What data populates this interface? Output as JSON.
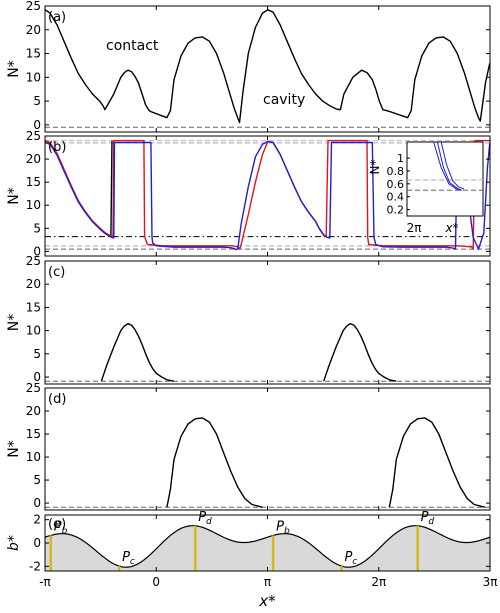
{
  "colors": {
    "black": "#000000",
    "red": "#e0141e",
    "blue": "#1f1fd6",
    "dash_gray": "#666666",
    "pale_red": "#e8a0a0",
    "pale_blue": "#a0a0e8",
    "bed_fill": "#d9d9d9",
    "marker": "#d4b81c"
  },
  "chart_data": [
    {
      "type": "line",
      "panel": "(a)",
      "ylabel": "N*",
      "ylim": [
        -1.5,
        25
      ],
      "yticks": [
        "0",
        "5",
        "10",
        "15",
        "20",
        "25"
      ],
      "xlim": [
        -3.1416,
        9.4248
      ],
      "annotations": [
        "contact",
        "cavity"
      ],
      "reference_line": {
        "y": -0.5,
        "style": "dashed"
      },
      "series": [
        {
          "color": "black",
          "x": [
            -3.14,
            -3.0,
            -2.8,
            -2.6,
            -2.4,
            -2.2,
            -2.0,
            -1.8,
            -1.6,
            -1.5,
            -1.45,
            -1.2,
            -1.0,
            -0.9,
            -0.8,
            -0.7,
            -0.6,
            -0.5,
            -0.4,
            -0.3,
            -0.2,
            -0.15,
            0.3,
            0.4,
            0.5,
            0.7,
            0.9,
            1.1,
            1.3,
            1.5,
            1.7,
            1.9,
            2.1,
            2.2,
            2.3,
            2.35,
            2.45,
            2.6,
            2.8,
            3.0,
            3.15,
            3.3,
            3.5,
            3.7,
            3.9,
            4.1,
            4.3,
            4.5,
            4.7,
            4.9,
            5.1,
            5.2,
            5.3,
            5.55,
            5.8,
            5.95,
            6.1,
            6.2,
            6.3,
            6.4,
            6.55,
            6.6,
            7.1,
            7.2,
            7.3,
            7.5,
            7.7,
            7.9,
            8.1,
            8.3,
            8.5,
            8.7,
            8.9,
            9.0,
            9.1,
            9.15,
            9.3,
            9.42
          ],
          "y": [
            24.2,
            23.5,
            21.0,
            17.5,
            14.0,
            10.8,
            8.5,
            6.5,
            5.0,
            4.0,
            3.2,
            6.5,
            10.0,
            11.0,
            11.5,
            11.2,
            10.2,
            8.8,
            6.5,
            4.2,
            3.0,
            2.8,
            1.5,
            3.0,
            9.5,
            14.5,
            17.2,
            18.3,
            18.5,
            17.6,
            15.0,
            11.0,
            6.0,
            3.5,
            1.5,
            0.5,
            7.0,
            15.0,
            20.5,
            23.5,
            24.2,
            23.7,
            21.0,
            17.5,
            14.0,
            10.8,
            8.5,
            6.5,
            5.0,
            4.0,
            3.3,
            3.2,
            6.5,
            10.0,
            11.5,
            11.0,
            9.5,
            7.5,
            5.0,
            3.2,
            2.9,
            2.8,
            1.5,
            3.0,
            9.5,
            14.5,
            17.2,
            18.3,
            18.5,
            17.6,
            15.0,
            11.0,
            6.0,
            3.5,
            1.5,
            0.8,
            9.0,
            13.0
          ]
        }
      ]
    },
    {
      "type": "line",
      "panel": "(b)",
      "ylabel": "N*",
      "ylim": [
        -1,
        25
      ],
      "yticks": [
        "0",
        "5",
        "10",
        "15",
        "20",
        "25"
      ],
      "xlim": [
        -3.1416,
        9.4248
      ],
      "reference_lines": [
        {
          "y": 24.0,
          "color": "pale_red",
          "style": "dashed"
        },
        {
          "y": 23.5,
          "color": "pale_blue",
          "style": "dashed"
        },
        {
          "y": 3.2,
          "color": "black",
          "style": "dashdot"
        },
        {
          "y": 1.2,
          "color": "pale_blue",
          "style": "dashed"
        },
        {
          "y": 0.5,
          "color": "dash_gray",
          "style": "dashed"
        }
      ],
      "series": [
        {
          "color": "black",
          "x": [
            -3.14,
            -3.0,
            -2.8,
            -2.6,
            -2.4,
            -2.2,
            -2.0,
            -1.8,
            -1.6,
            -1.45,
            -1.3,
            -1.28,
            -1.25
          ],
          "y": [
            24.0,
            23.5,
            21.0,
            17.5,
            14.0,
            10.8,
            8.5,
            6.5,
            5.0,
            4.0,
            3.3,
            3.2,
            24.0
          ]
        },
        {
          "color": "red",
          "x": [
            -3.14,
            -3.0,
            -2.8,
            -2.6,
            -2.4,
            -2.2,
            -2.0,
            -1.8,
            -1.6,
            -1.45,
            -1.3,
            -1.22,
            -1.2,
            -0.35,
            -0.33,
            -0.3,
            -0.25,
            0.2,
            2.15,
            2.3,
            2.33,
            2.36,
            2.4,
            2.6,
            2.8,
            3.0,
            3.15,
            3.3,
            3.5,
            3.7,
            3.9,
            4.1,
            4.3,
            4.5,
            4.6,
            4.75,
            4.8,
            4.85,
            5.95,
            5.97,
            6.0,
            6.4,
            8.5,
            8.9,
            8.95,
            9.0,
            9.1,
            9.2,
            9.3,
            9.42
          ],
          "y": [
            24.0,
            23.6,
            21.2,
            17.7,
            14.2,
            11.0,
            8.6,
            6.6,
            5.1,
            4.1,
            3.4,
            3.3,
            24.0,
            24.0,
            3.3,
            2.6,
            1.5,
            1.2,
            1.2,
            1.0,
            0.8,
            0.5,
            1.5,
            8.0,
            15.0,
            21.0,
            23.8,
            23.6,
            21.0,
            17.5,
            14.0,
            10.8,
            8.5,
            6.5,
            5.0,
            3.4,
            3.3,
            24.0,
            24.0,
            3.0,
            1.5,
            1.2,
            1.2,
            1.0,
            0.5,
            24.0,
            24.0,
            24.0,
            24.0,
            24.0
          ]
        },
        {
          "color": "blue",
          "x": [
            -3.14,
            -3.0,
            -2.8,
            -2.6,
            -2.4,
            -2.2,
            -2.0,
            -1.8,
            -1.6,
            -1.45,
            -1.3,
            -1.25,
            -1.2,
            -1.18,
            -0.15,
            -0.12,
            -0.1,
            0.0,
            0.5,
            1.9,
            2.1,
            2.2,
            2.25,
            2.3,
            2.4,
            2.6,
            2.8,
            3.0,
            3.15,
            3.3,
            3.5,
            3.7,
            3.9,
            4.1,
            4.3,
            4.5,
            4.6,
            4.75,
            4.85,
            4.9,
            4.95,
            6.1,
            6.15,
            6.2,
            6.4,
            7.0,
            8.2,
            8.4,
            8.45,
            8.5,
            8.6,
            8.8,
            8.95,
            9.1,
            9.25,
            9.35,
            9.42
          ],
          "y": [
            23.6,
            23.2,
            20.8,
            17.3,
            13.9,
            10.7,
            8.4,
            6.4,
            4.9,
            3.9,
            3.2,
            3.0,
            2.9,
            23.6,
            23.6,
            3.0,
            1.8,
            1.2,
            0.9,
            0.9,
            0.8,
            0.6,
            0.4,
            0.5,
            6.0,
            14.0,
            20.5,
            23.2,
            23.8,
            23.6,
            21.0,
            17.5,
            14.0,
            10.8,
            8.5,
            6.5,
            5.0,
            3.3,
            3.0,
            2.9,
            23.6,
            23.6,
            3.0,
            1.5,
            1.0,
            0.9,
            0.9,
            0.7,
            0.5,
            23.6,
            23.6,
            12.0,
            3.0,
            0.5,
            4.0,
            18.0,
            23.5
          ]
        }
      ],
      "inset": {
        "ylabel": "N*",
        "yticks": [
          "0.2",
          "0.4",
          "0.6",
          "0.8",
          "1"
        ],
        "ylim": [
          0.1,
          1.25
        ],
        "xlabels": [
          "2π",
          "x*"
        ],
        "reference_lines": [
          {
            "y": 0.66,
            "color": "pale_blue",
            "style": "dashed"
          },
          {
            "y": 0.5,
            "color": "dash_gray",
            "style": "dashed"
          }
        ]
      }
    },
    {
      "type": "line",
      "panel": "(c)",
      "ylabel": "N*",
      "ylim": [
        -1.5,
        25
      ],
      "yticks": [
        "0",
        "5",
        "10",
        "15",
        "20",
        "25"
      ],
      "xlim": [
        -3.1416,
        9.4248
      ],
      "reference_line": {
        "y": -0.9,
        "style": "dashed"
      },
      "series": [
        {
          "color": "black",
          "x": [
            -1.55,
            -1.4,
            -1.2,
            -1.0,
            -0.9,
            -0.8,
            -0.7,
            -0.6,
            -0.5,
            -0.4,
            -0.3,
            -0.2,
            -0.1,
            0.0,
            0.15,
            0.3,
            0.5
          ],
          "y": [
            -0.9,
            2.5,
            6.5,
            10.0,
            11.0,
            11.5,
            11.2,
            10.2,
            8.8,
            7.0,
            5.0,
            3.2,
            1.8,
            0.8,
            0.0,
            -0.6,
            -0.9
          ]
        },
        {
          "color": "black",
          "x": [
            4.73,
            4.88,
            5.08,
            5.28,
            5.38,
            5.48,
            5.58,
            5.68,
            5.78,
            5.88,
            5.98,
            6.08,
            6.18,
            6.28,
            6.43,
            6.58,
            6.78
          ],
          "y": [
            -0.9,
            2.5,
            6.5,
            10.0,
            11.0,
            11.5,
            11.2,
            10.2,
            8.8,
            7.0,
            5.0,
            3.2,
            1.8,
            0.8,
            0.0,
            -0.6,
            -0.9
          ]
        }
      ]
    },
    {
      "type": "line",
      "panel": "(d)",
      "ylabel": "N*",
      "ylim": [
        -1.5,
        25
      ],
      "yticks": [
        "0",
        "5",
        "10",
        "15",
        "20",
        "25"
      ],
      "xlim": [
        -3.1416,
        9.4248
      ],
      "reference_line": {
        "y": -0.9,
        "style": "dashed"
      },
      "series": [
        {
          "color": "black",
          "x": [
            0.3,
            0.4,
            0.5,
            0.7,
            0.9,
            1.1,
            1.3,
            1.5,
            1.7,
            1.9,
            2.1,
            2.3,
            2.5,
            2.7,
            3.0
          ],
          "y": [
            -0.9,
            3.0,
            9.5,
            14.5,
            17.2,
            18.3,
            18.5,
            17.6,
            15.0,
            11.0,
            7.0,
            3.5,
            1.0,
            -0.3,
            -0.9
          ]
        },
        {
          "color": "black",
          "x": [
            6.58,
            6.68,
            6.78,
            6.98,
            7.18,
            7.38,
            7.58,
            7.78,
            7.98,
            8.18,
            8.38,
            8.58,
            8.78,
            8.98,
            9.28
          ],
          "y": [
            -0.9,
            3.0,
            9.5,
            14.5,
            17.2,
            18.3,
            18.5,
            17.6,
            15.0,
            11.0,
            7.0,
            3.5,
            1.0,
            -0.3,
            -0.9
          ]
        }
      ]
    },
    {
      "type": "area",
      "panel": "(e)",
      "ylabel": "b*",
      "xlabel": "x*",
      "ylim": [
        -2.4,
        2.4
      ],
      "yticks": [
        "-2",
        "0",
        "2"
      ],
      "xlim": [
        -3.1416,
        9.4248
      ],
      "xticks": [
        "-π",
        "0",
        "π",
        "2π",
        "3π"
      ],
      "xtick_values": [
        -3.1416,
        0,
        3.1416,
        6.2832,
        9.4248
      ],
      "bed_profile": "b* = sin(x*) + sin(2x*) - 0.5·cos(x*)",
      "markers": [
        {
          "label": "P_b",
          "x": -2.98
        },
        {
          "label": "P_c",
          "x": -1.05
        },
        {
          "label": "P_d",
          "x": 1.1
        },
        {
          "label": "P_b",
          "x": 3.3
        },
        {
          "label": "P_c",
          "x": 5.23
        },
        {
          "label": "P_d",
          "x": 7.38
        }
      ]
    }
  ]
}
